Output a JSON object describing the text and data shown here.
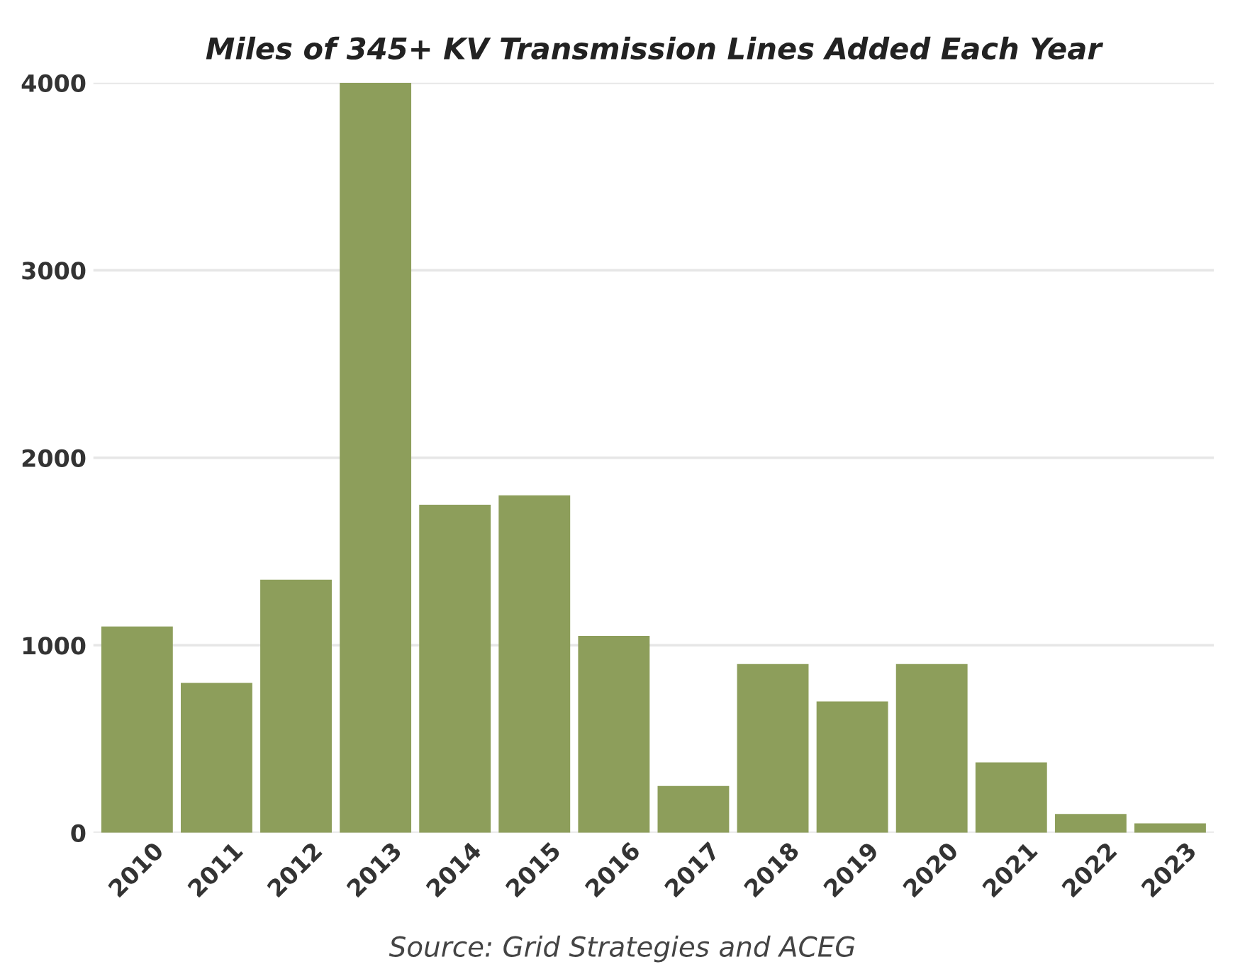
{
  "chart_data": {
    "type": "bar",
    "title": "Miles of 345+ KV Transmission Lines Added Each Year",
    "categories": [
      "2010",
      "2011",
      "2012",
      "2013",
      "2014",
      "2015",
      "2016",
      "2017",
      "2018",
      "2019",
      "2020",
      "2021",
      "2022",
      "2023"
    ],
    "values": [
      1100,
      800,
      1350,
      4000,
      1750,
      1800,
      1050,
      250,
      900,
      700,
      900,
      375,
      100,
      50
    ],
    "color": "#8d9e5b",
    "ylim": [
      0,
      4000
    ],
    "yticks": [
      0,
      1000,
      2000,
      3000,
      4000
    ],
    "grid": "y",
    "annotations": [
      "Source: Grid Strategies and ACEG"
    ]
  }
}
